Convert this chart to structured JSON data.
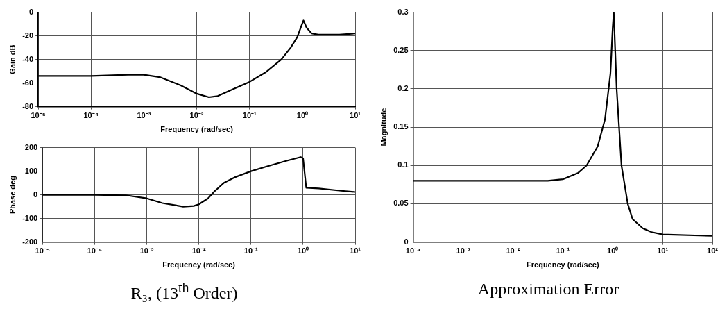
{
  "chart_data": [
    {
      "type": "line",
      "xlabel": "Frequency (rad/sec)",
      "ylabel": "Gain dB",
      "log": "x",
      "annotations": [
        "R₃, (13$^{th}$ Order)"
      ],
      "grid": true,
      "color": "#000000",
      "x": [
        1e-05,
        0.0001,
        0.0005,
        0.001,
        0.002,
        0.005,
        0.01,
        0.017,
        0.025,
        0.05,
        0.1,
        0.2,
        0.4,
        0.6,
        0.8,
        0.95,
        1.05,
        1.2,
        1.5,
        2,
        5,
        10
      ],
      "values": [
        -54,
        -54,
        -53,
        -53,
        -55,
        -62,
        -69,
        -72,
        -71,
        -65,
        -59,
        -51,
        -40,
        -30,
        -21,
        -12,
        -7,
        -13,
        -18,
        -19,
        -19,
        -18
      ],
      "xlim": [
        1e-05,
        10
      ],
      "ylim": [
        -80,
        0
      ],
      "xticks": [
        {
          "value": 1e-05,
          "label": "10⁻⁵"
        },
        {
          "value": 0.0001,
          "label": "10⁻⁴"
        },
        {
          "value": 0.001,
          "label": "10⁻³"
        },
        {
          "value": 0.01,
          "label": "10⁻²"
        },
        {
          "value": 0.1,
          "label": "10⁻¹"
        },
        {
          "value": 1,
          "label": "10⁰"
        },
        {
          "value": 10,
          "label": "10¹"
        }
      ],
      "yticks": [
        -80,
        -60,
        -40,
        -20,
        0
      ]
    },
    {
      "type": "line",
      "xlabel": "Frequency (rad/sec)",
      "ylabel": "Phase deg",
      "log": "x",
      "grid": true,
      "color": "#000000",
      "x": [
        1e-05,
        0.0001,
        0.0004,
        0.001,
        0.002,
        0.005,
        0.008,
        0.01,
        0.015,
        0.02,
        0.03,
        0.05,
        0.1,
        0.2,
        0.5,
        0.9,
        1.0,
        1.15,
        2,
        5,
        10
      ],
      "values": [
        0,
        0,
        -2,
        -15,
        -35,
        -50,
        -47,
        -40,
        -15,
        15,
        50,
        75,
        100,
        120,
        145,
        160,
        155,
        30,
        27,
        18,
        12
      ],
      "xlim": [
        1e-05,
        10
      ],
      "ylim": [
        -200,
        200
      ],
      "xticks": [
        {
          "value": 1e-05,
          "label": "10⁻⁵"
        },
        {
          "value": 0.0001,
          "label": "10⁻⁴"
        },
        {
          "value": 0.001,
          "label": "10⁻³"
        },
        {
          "value": 0.01,
          "label": "10⁻²"
        },
        {
          "value": 0.1,
          "label": "10⁻¹"
        },
        {
          "value": 1,
          "label": "10⁰"
        },
        {
          "value": 10,
          "label": "10¹"
        }
      ],
      "yticks": [
        -200,
        -100,
        0,
        100,
        200
      ]
    },
    {
      "type": "line",
      "xlabel": "Frequency (rad/sec)",
      "ylabel": "Magnitude",
      "log": "x",
      "annotations": [
        "Approximation Error"
      ],
      "grid": true,
      "color": "#000000",
      "x": [
        0.0001,
        0.01,
        0.05,
        0.1,
        0.2,
        0.3,
        0.5,
        0.7,
        0.9,
        1.0,
        1.05,
        1.2,
        1.5,
        2,
        2.5,
        4,
        6,
        10,
        100
      ],
      "values": [
        0.08,
        0.08,
        0.08,
        0.082,
        0.09,
        0.1,
        0.125,
        0.16,
        0.22,
        0.28,
        0.3,
        0.2,
        0.1,
        0.05,
        0.03,
        0.018,
        0.013,
        0.01,
        0.008
      ],
      "xlim": [
        0.0001,
        100
      ],
      "ylim": [
        0,
        0.3
      ],
      "xticks": [
        {
          "value": 0.0001,
          "label": "10⁻⁴"
        },
        {
          "value": 0.001,
          "label": "10⁻³"
        },
        {
          "value": 0.01,
          "label": "10⁻²"
        },
        {
          "value": 0.1,
          "label": "10⁻¹"
        },
        {
          "value": 1,
          "label": "10⁰"
        },
        {
          "value": 10,
          "label": "10¹"
        },
        {
          "value": 100,
          "label": "10²"
        }
      ],
      "yticks": [
        0,
        0.05,
        0.1,
        0.15,
        0.2,
        0.25,
        0.3
      ]
    }
  ]
}
